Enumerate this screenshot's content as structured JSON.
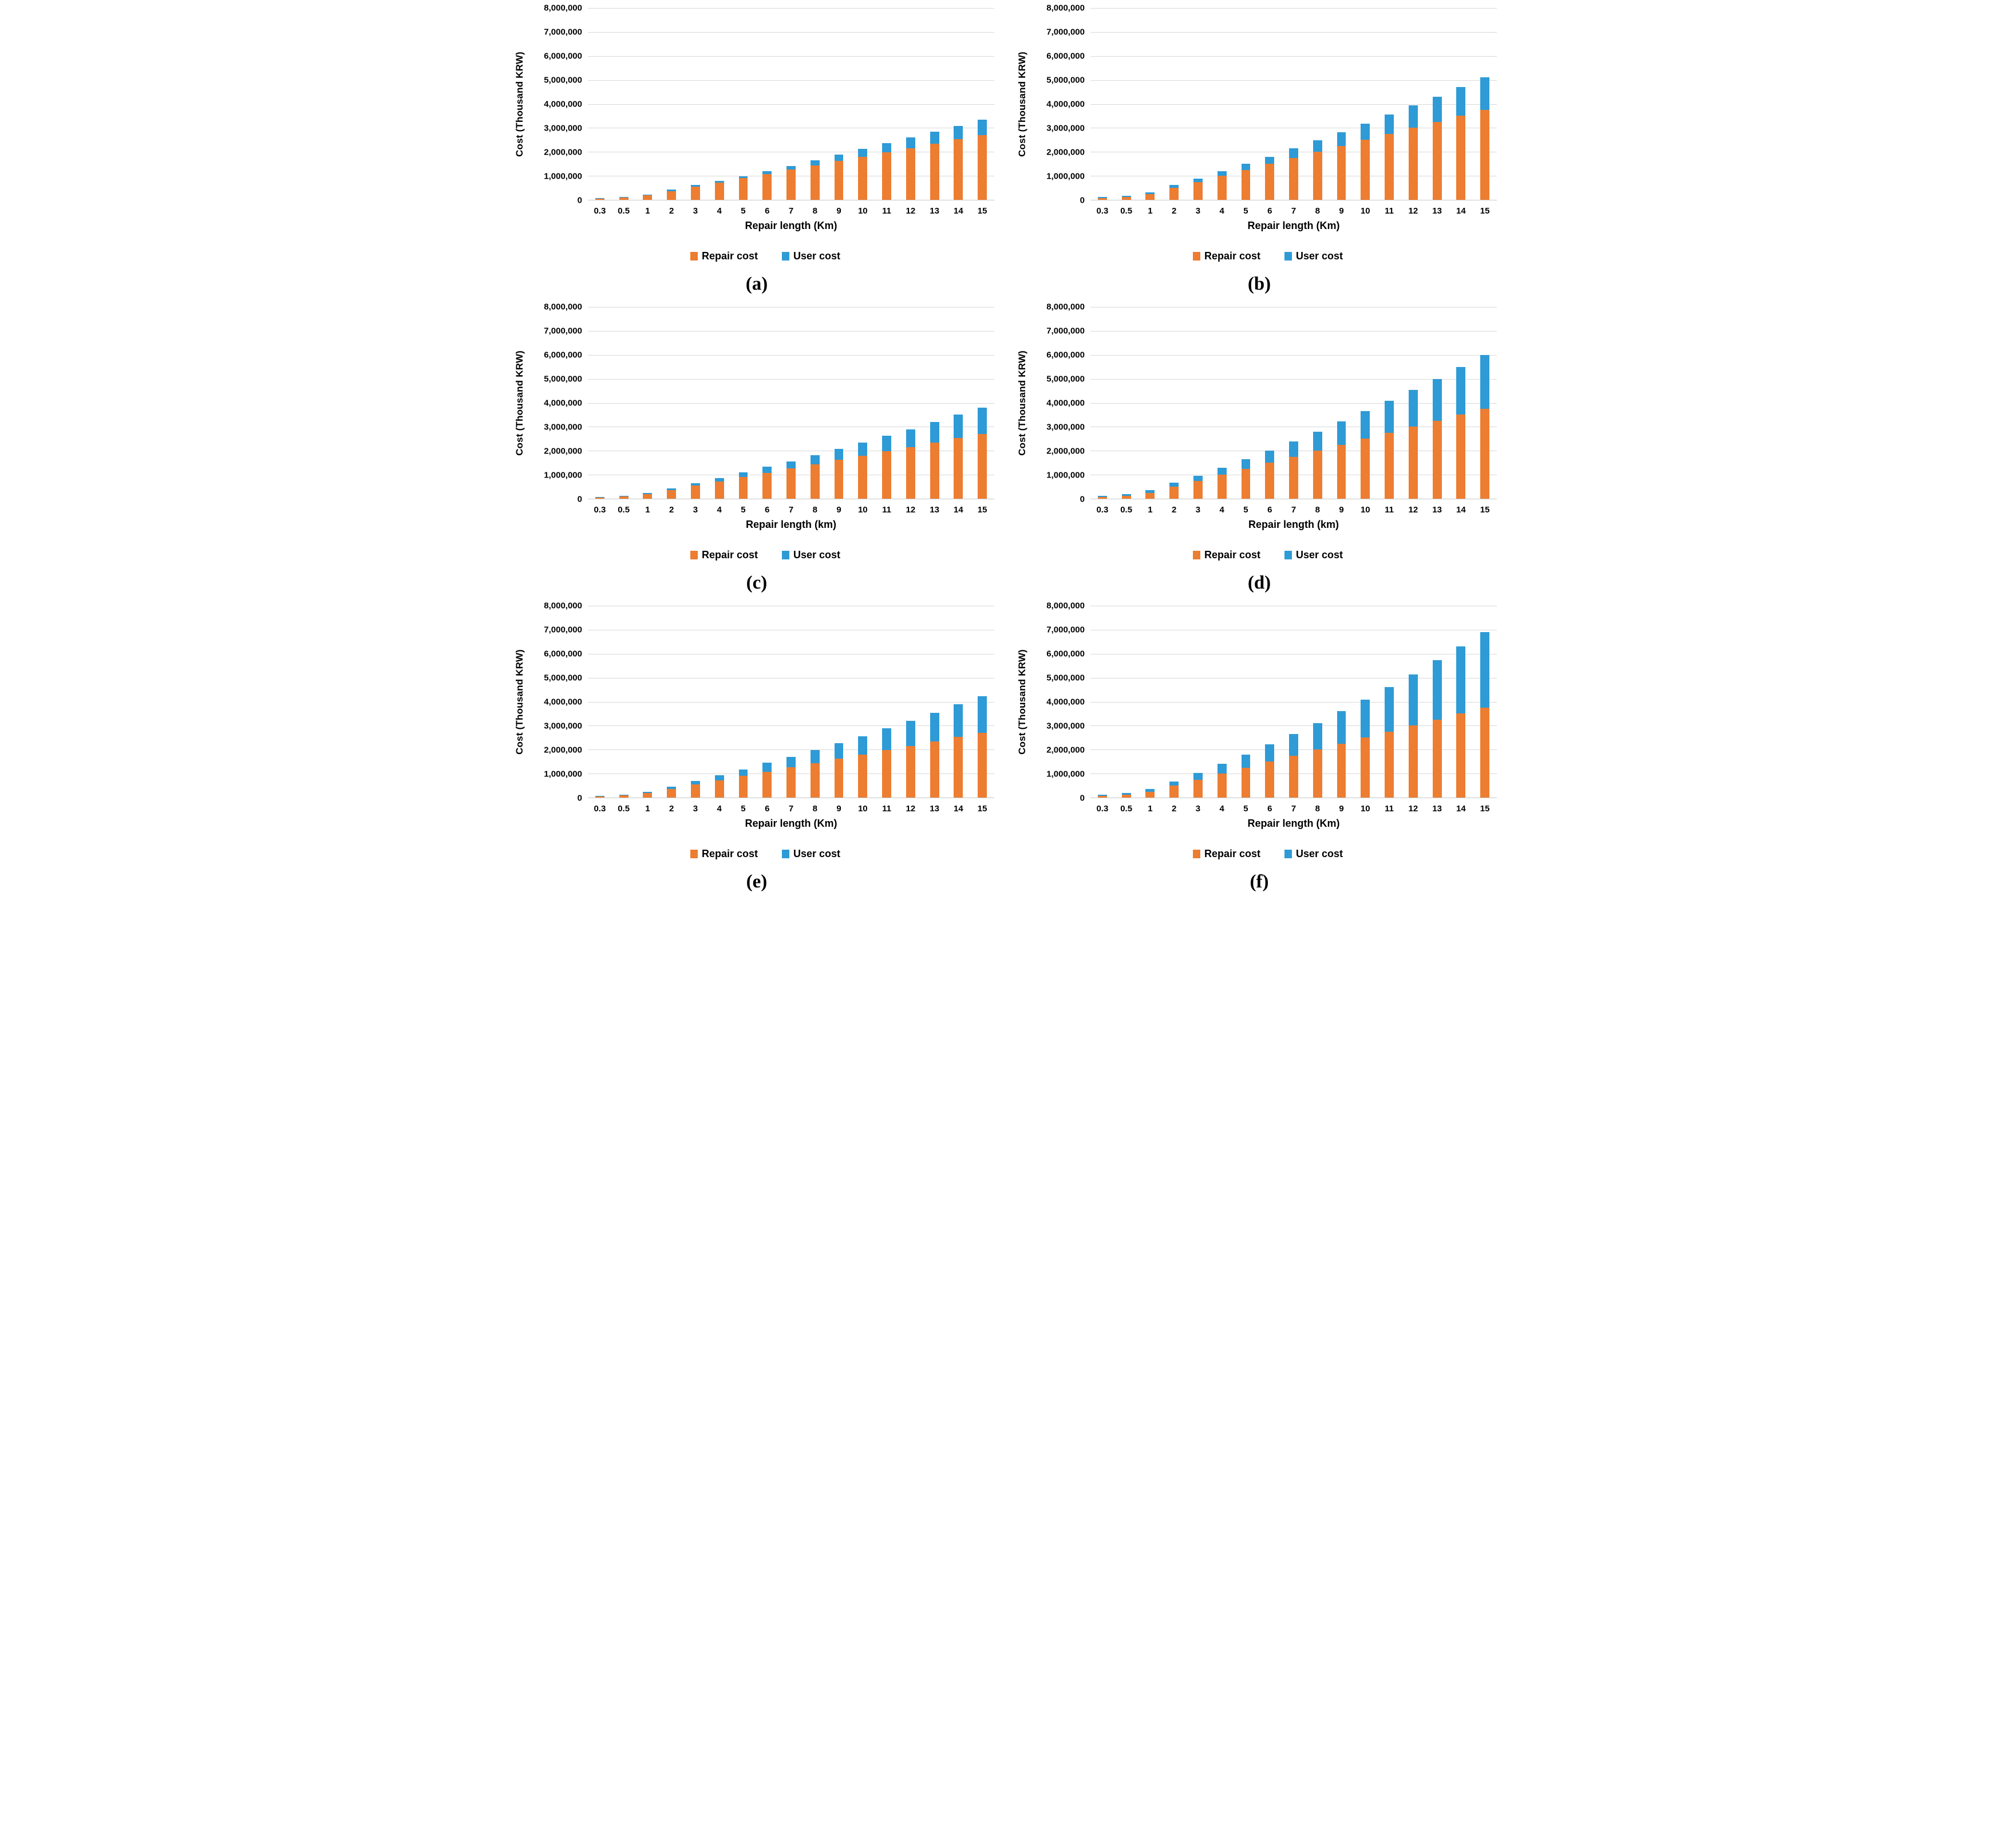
{
  "page": {
    "background": "#FFFFFF"
  },
  "colors": {
    "repair_cost": "#ED7D31",
    "user_cost": "#2E9BD6",
    "gridline": "#D9D9D9",
    "text": "#000000"
  },
  "chart_data": [
    {
      "id": "a",
      "caption": "(a)",
      "type": "bar",
      "stacked": true,
      "grid": "horizontal",
      "legend_position": "bottom",
      "y_axis_title": "Cost (Thousand KRW)",
      "x_axis_title": "Repair length (Km)",
      "ylim": [
        0,
        8000000
      ],
      "y_tick_labels": [
        "8,000,000",
        "7,000,000",
        "6,000,000",
        "5,000,000",
        "4,000,000",
        "3,000,000",
        "2,000,000",
        "1,000,000",
        "0"
      ],
      "categories": [
        "0.3",
        "0.5",
        "1",
        "2",
        "3",
        "4",
        "5",
        "6",
        "7",
        "8",
        "9",
        "10",
        "11",
        "12",
        "13",
        "14",
        "15"
      ],
      "series": [
        {
          "name": "Repair cost",
          "color": "#ED7D31",
          "values": [
            60000,
            95000,
            180000,
            360000,
            540000,
            720000,
            900000,
            1080000,
            1260000,
            1440000,
            1620000,
            1800000,
            1980000,
            2160000,
            2340000,
            2520000,
            2700000
          ]
        },
        {
          "name": "User cost",
          "color": "#2E9BD6",
          "values": [
            20000,
            25000,
            35000,
            60000,
            80000,
            80000,
            90000,
            120000,
            160000,
            210000,
            270000,
            320000,
            380000,
            440000,
            500000,
            570000,
            650000
          ]
        }
      ]
    },
    {
      "id": "b",
      "caption": "(b)",
      "type": "bar",
      "stacked": true,
      "grid": "horizontal",
      "legend_position": "bottom",
      "y_axis_title": "Cost (Thousand KRW)",
      "x_axis_title": "Repair length (Km)",
      "ylim": [
        0,
        8000000
      ],
      "y_tick_labels": [
        "8,000,000",
        "7,000,000",
        "6,000,000",
        "5,000,000",
        "4,000,000",
        "3,000,000",
        "2,000,000",
        "1,000,000",
        "0"
      ],
      "categories": [
        "0.3",
        "0.5",
        "1",
        "2",
        "3",
        "4",
        "5",
        "6",
        "7",
        "8",
        "9",
        "10",
        "11",
        "12",
        "13",
        "14",
        "15"
      ],
      "series": [
        {
          "name": "Repair cost",
          "color": "#ED7D31",
          "values": [
            80000,
            125000,
            250000,
            500000,
            750000,
            1000000,
            1250000,
            1500000,
            1750000,
            2000000,
            2250000,
            2500000,
            2750000,
            3000000,
            3250000,
            3500000,
            3750000
          ]
        },
        {
          "name": "User cost",
          "color": "#2E9BD6",
          "values": [
            30000,
            40000,
            70000,
            110000,
            130000,
            190000,
            250000,
            300000,
            400000,
            480000,
            580000,
            680000,
            800000,
            930000,
            1060000,
            1200000,
            1350000
          ]
        }
      ]
    },
    {
      "id": "c",
      "caption": "(c)",
      "type": "bar",
      "stacked": true,
      "grid": "horizontal",
      "legend_position": "bottom",
      "y_axis_title": "Cost (Thousand KRW)",
      "x_axis_title": "Repair length (km)",
      "ylim": [
        0,
        8000000
      ],
      "y_tick_labels": [
        "8,000,000",
        "7,000,000",
        "6,000,000",
        "5,000,000",
        "4,000,000",
        "3,000,000",
        "2,000,000",
        "1,000,000",
        "0"
      ],
      "categories": [
        "0.3",
        "0.5",
        "1",
        "2",
        "3",
        "4",
        "5",
        "6",
        "7",
        "8",
        "9",
        "10",
        "11",
        "12",
        "13",
        "14",
        "15"
      ],
      "series": [
        {
          "name": "Repair cost",
          "color": "#ED7D31",
          "values": [
            60000,
            95000,
            180000,
            360000,
            540000,
            720000,
            900000,
            1080000,
            1260000,
            1440000,
            1620000,
            1800000,
            1980000,
            2160000,
            2340000,
            2520000,
            2700000
          ]
        },
        {
          "name": "User cost",
          "color": "#2E9BD6",
          "values": [
            20000,
            25000,
            60000,
            80000,
            110000,
            150000,
            190000,
            250000,
            300000,
            380000,
            450000,
            540000,
            640000,
            740000,
            860000,
            980000,
            1100000
          ]
        }
      ]
    },
    {
      "id": "d",
      "caption": "(d)",
      "type": "bar",
      "stacked": true,
      "grid": "horizontal",
      "legend_position": "bottom",
      "y_axis_title": "Cost (Thousand KRW)",
      "x_axis_title": "Repair length (km)",
      "ylim": [
        0,
        8000000
      ],
      "y_tick_labels": [
        "8,000,000",
        "7,000,000",
        "6,000,000",
        "5,000,000",
        "4,000,000",
        "3,000,000",
        "2,000,000",
        "1,000,000",
        "0"
      ],
      "categories": [
        "0.3",
        "0.5",
        "1",
        "2",
        "3",
        "4",
        "5",
        "6",
        "7",
        "8",
        "9",
        "10",
        "11",
        "12",
        "13",
        "14",
        "15"
      ],
      "series": [
        {
          "name": "Repair cost",
          "color": "#ED7D31",
          "values": [
            80000,
            125000,
            250000,
            500000,
            750000,
            1000000,
            1250000,
            1500000,
            1750000,
            2000000,
            2250000,
            2500000,
            2750000,
            3000000,
            3250000,
            3500000,
            3750000
          ]
        },
        {
          "name": "User cost",
          "color": "#2E9BD6",
          "values": [
            40000,
            55000,
            100000,
            160000,
            200000,
            300000,
            400000,
            500000,
            650000,
            800000,
            980000,
            1150000,
            1330000,
            1530000,
            1750000,
            2000000,
            2250000
          ]
        }
      ]
    },
    {
      "id": "e",
      "caption": "(e)",
      "type": "bar",
      "stacked": true,
      "grid": "horizontal",
      "legend_position": "bottom",
      "y_axis_title": "Cost (Thousand KRW)",
      "x_axis_title": "Repair length (Km)",
      "ylim": [
        0,
        8000000
      ],
      "y_tick_labels": [
        "8,000,000",
        "7,000,000",
        "6,000,000",
        "5,000,000",
        "4,000,000",
        "3,000,000",
        "2,000,000",
        "1,000,000",
        "0"
      ],
      "categories": [
        "0.3",
        "0.5",
        "1",
        "2",
        "3",
        "4",
        "5",
        "6",
        "7",
        "8",
        "9",
        "10",
        "11",
        "12",
        "13",
        "14",
        "15"
      ],
      "series": [
        {
          "name": "Repair cost",
          "color": "#ED7D31",
          "values": [
            60000,
            95000,
            180000,
            360000,
            540000,
            720000,
            900000,
            1080000,
            1260000,
            1440000,
            1620000,
            1800000,
            1980000,
            2160000,
            2340000,
            2520000,
            2700000
          ]
        },
        {
          "name": "User cost",
          "color": "#2E9BD6",
          "values": [
            20000,
            25000,
            60000,
            100000,
            150000,
            210000,
            270000,
            370000,
            430000,
            540000,
            640000,
            760000,
            910000,
            1030000,
            1190000,
            1370000,
            1530000
          ]
        }
      ]
    },
    {
      "id": "f",
      "caption": "(f)",
      "type": "bar",
      "stacked": true,
      "grid": "horizontal",
      "legend_position": "bottom",
      "y_axis_title": "Cost (Thousand KRW)",
      "x_axis_title": "Repair length (Km)",
      "ylim": [
        0,
        8000000
      ],
      "y_tick_labels": [
        "8,000,000",
        "7,000,000",
        "6,000,000",
        "5,000,000",
        "4,000,000",
        "3,000,000",
        "2,000,000",
        "1,000,000",
        "0"
      ],
      "categories": [
        "0.3",
        "0.5",
        "1",
        "2",
        "3",
        "4",
        "5",
        "6",
        "7",
        "8",
        "9",
        "10",
        "11",
        "12",
        "13",
        "14",
        "15"
      ],
      "series": [
        {
          "name": "Repair cost",
          "color": "#ED7D31",
          "values": [
            80000,
            125000,
            250000,
            500000,
            750000,
            1000000,
            1250000,
            1500000,
            1750000,
            2000000,
            2250000,
            2500000,
            2750000,
            3000000,
            3250000,
            3500000,
            3750000
          ]
        },
        {
          "name": "User cost",
          "color": "#2E9BD6",
          "values": [
            40000,
            65000,
            110000,
            170000,
            270000,
            410000,
            550000,
            730000,
            910000,
            1100000,
            1350000,
            1580000,
            1860000,
            2140000,
            2470000,
            2810000,
            3150000
          ]
        }
      ]
    }
  ]
}
